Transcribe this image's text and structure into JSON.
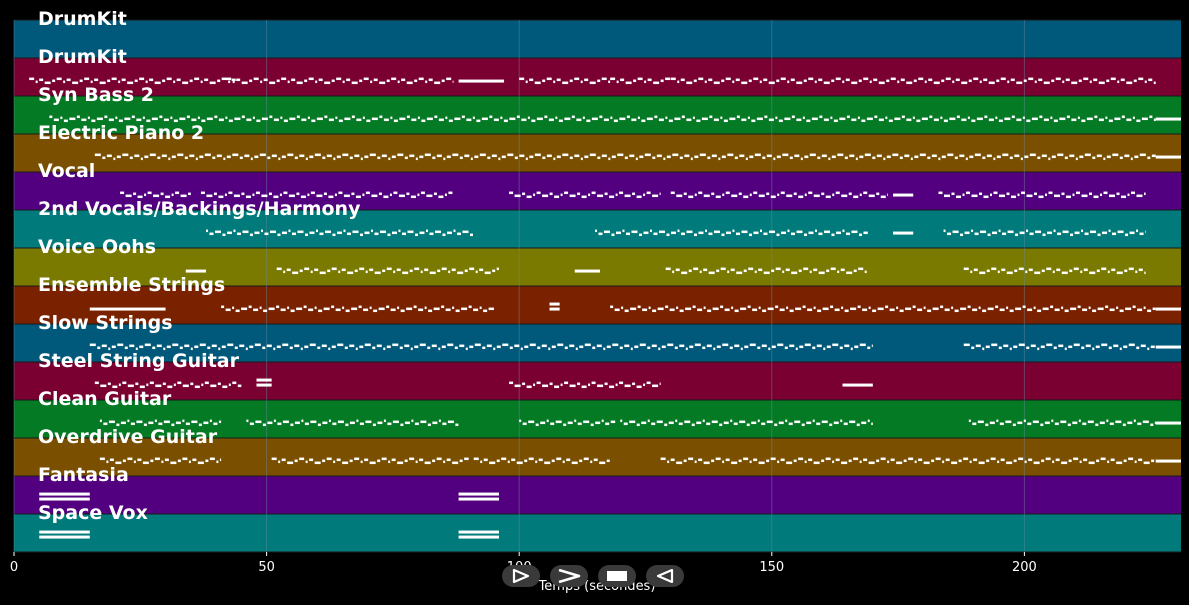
{
  "xlabel": "Temps (secondes)",
  "colors": {
    "background": "#000000",
    "note": "#ffffff",
    "grid": "#6a8aa0",
    "lanes": [
      "#00587a",
      "#7a0032",
      "#047a24",
      "#7a5000",
      "#520080",
      "#007a7a",
      "#7a7a00",
      "#7a2200"
    ]
  },
  "transport": [
    {
      "name": "play-forward-icon"
    },
    {
      "name": "fast-forward-icon"
    },
    {
      "name": "stop-icon"
    },
    {
      "name": "play-backward-icon"
    }
  ],
  "chart_data": {
    "type": "piano-roll",
    "xlabel": "Temps (secondes)",
    "xlim": [
      0,
      231
    ],
    "xticks": [
      0,
      50,
      100,
      150,
      200
    ],
    "grid": true,
    "tracks": [
      {
        "name": "DrumKit",
        "segments": []
      },
      {
        "name": "DrumKit",
        "segments": [
          [
            3,
            44
          ],
          [
            42,
            87
          ],
          [
            88,
            97
          ],
          [
            100,
            118
          ],
          [
            118,
            130
          ],
          [
            130,
            226
          ]
        ]
      },
      {
        "name": "Syn Bass 2",
        "segments": [
          [
            7,
            226
          ],
          [
            226,
            231
          ]
        ]
      },
      {
        "name": "Electric Piano 2",
        "segments": [
          [
            16,
            226
          ],
          [
            226,
            231
          ]
        ]
      },
      {
        "name": "Vocal",
        "segments": [
          [
            21,
            35
          ],
          [
            37,
            87
          ],
          [
            98,
            128
          ],
          [
            130,
            173
          ],
          [
            174,
            178
          ],
          [
            183,
            224
          ]
        ]
      },
      {
        "name": "2nd Vocals/Backings/Harmony",
        "segments": [
          [
            38,
            91
          ],
          [
            115,
            169
          ],
          [
            174,
            178
          ],
          [
            184,
            224
          ]
        ]
      },
      {
        "name": "Voice Oohs",
        "segments": [
          [
            34,
            38
          ],
          [
            52,
            96
          ],
          [
            111,
            116
          ],
          [
            129,
            169
          ],
          [
            188,
            224
          ]
        ]
      },
      {
        "name": "Ensemble Strings",
        "segments": [
          [
            15,
            19
          ],
          [
            19,
            30
          ],
          [
            41,
            95
          ],
          [
            106,
            108
          ],
          [
            118,
            226
          ],
          [
            226,
            231
          ]
        ]
      },
      {
        "name": "Slow Strings",
        "segments": [
          [
            15,
            170
          ],
          [
            188,
            226
          ],
          [
            226,
            231
          ]
        ]
      },
      {
        "name": "Steel String Guitar",
        "segments": [
          [
            16,
            45
          ],
          [
            48,
            51
          ],
          [
            98,
            128
          ],
          [
            164,
            170
          ]
        ]
      },
      {
        "name": "Clean Guitar",
        "segments": [
          [
            17,
            41
          ],
          [
            46,
            88
          ],
          [
            100,
            119
          ],
          [
            120,
            170
          ],
          [
            189,
            226
          ],
          [
            226,
            231
          ]
        ]
      },
      {
        "name": "Overdrive Guitar",
        "segments": [
          [
            17,
            41
          ],
          [
            51,
            90
          ],
          [
            91,
            118
          ],
          [
            128,
            226
          ],
          [
            226,
            231
          ]
        ]
      },
      {
        "name": "Fantasia",
        "segments": [
          [
            5,
            15
          ],
          [
            88,
            96
          ]
        ]
      },
      {
        "name": "Space Vox",
        "segments": [
          [
            5,
            15
          ],
          [
            88,
            96
          ]
        ]
      }
    ]
  }
}
